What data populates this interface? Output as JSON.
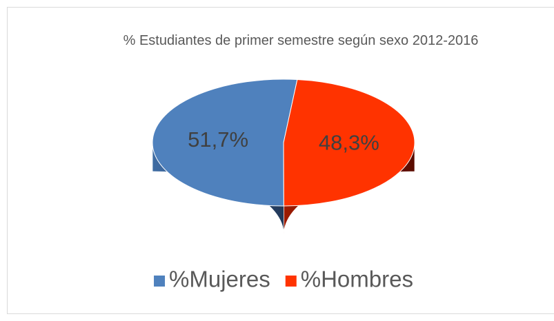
{
  "chart_data": {
    "type": "pie",
    "title": "% Estudiantes de primer semestre según sexo 2012-2016",
    "categories": [
      "%Mujeres",
      "%Hombres"
    ],
    "values": [
      51.7,
      48.3
    ],
    "value_labels": [
      "51,7%",
      "48,3%"
    ],
    "colors": [
      "#4f81bd",
      "#ff3300"
    ],
    "legend": "bottom"
  }
}
